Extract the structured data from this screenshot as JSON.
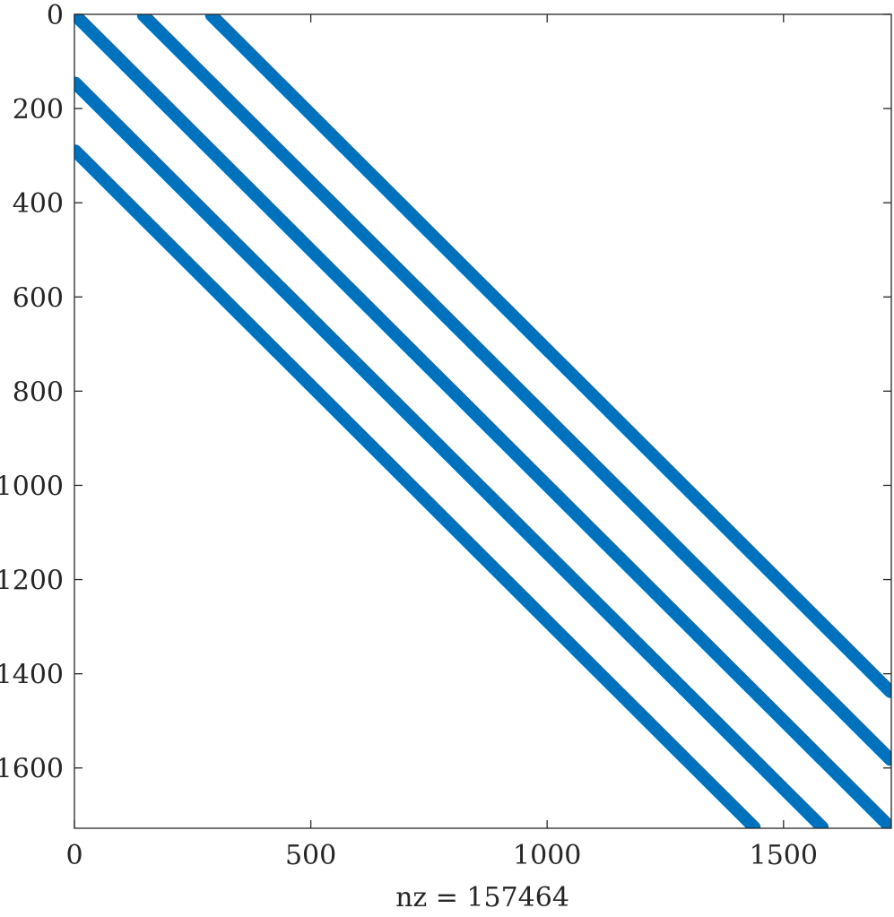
{
  "chart_data": {
    "type": "spy",
    "title": "",
    "xlabel": "nz = 157464",
    "ylabel": "",
    "xlim": [
      0,
      1728
    ],
    "ylim": [
      0,
      1728
    ],
    "y_reversed": true,
    "x_ticks": [
      0,
      500,
      1000,
      1500
    ],
    "y_ticks": [
      0,
      200,
      400,
      600,
      800,
      1000,
      1200,
      1400,
      1600
    ],
    "color": "#0072BD",
    "matrix_size": 1728,
    "block_size": 144,
    "block_offsets": [
      -2,
      -1,
      0,
      1,
      2
    ],
    "band_half_width": 10,
    "grid": false,
    "legend": "none"
  }
}
